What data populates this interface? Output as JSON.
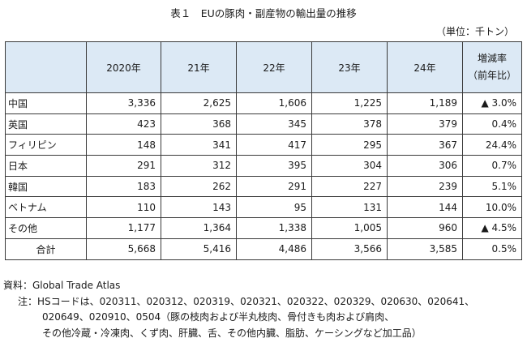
{
  "title": "表１　EUの豚肉・副産物の輸出量の推移",
  "unit": "（単位：千トン）",
  "table": {
    "headers": [
      "2020年",
      "21年",
      "22年",
      "23年",
      "24年"
    ],
    "rate_header_line1": "増減率",
    "rate_header_line2": "（前年比）",
    "rows": [
      {
        "label": "中国",
        "v1": "3,336",
        "v2": "2,625",
        "v3": "1,606",
        "v4": "1,225",
        "v5": "1,189",
        "rate": "▲ 3.0%"
      },
      {
        "label": "英国",
        "v1": "423",
        "v2": "368",
        "v3": "345",
        "v4": "378",
        "v5": "379",
        "rate": "0.4%"
      },
      {
        "label": "フィリピン",
        "v1": "148",
        "v2": "341",
        "v3": "417",
        "v4": "295",
        "v5": "367",
        "rate": "24.4%"
      },
      {
        "label": "日本",
        "v1": "291",
        "v2": "312",
        "v3": "395",
        "v4": "304",
        "v5": "306",
        "rate": "0.7%"
      },
      {
        "label": "韓国",
        "v1": "183",
        "v2": "262",
        "v3": "291",
        "v4": "227",
        "v5": "239",
        "rate": "5.1%"
      },
      {
        "label": "ベトナム",
        "v1": "110",
        "v2": "143",
        "v3": "95",
        "v4": "131",
        "v5": "144",
        "rate": "10.0%"
      },
      {
        "label": "その他",
        "v1": "1,177",
        "v2": "1,364",
        "v3": "1,338",
        "v4": "1,005",
        "v5": "960",
        "rate": "▲ 4.5%"
      }
    ],
    "total": {
      "label": "合計",
      "v1": "5,668",
      "v2": "5,416",
      "v3": "4,486",
      "v4": "3,566",
      "v5": "3,585",
      "rate": "0.5%"
    }
  },
  "notes": {
    "source": "資料：Global Trade Atlas",
    "note_line1": "注：HSコードは、020311、020312、020319、020321、020322、020329、020630、020641、",
    "note_line2": "020649、020910、0504（豚の枝肉および半丸枝肉、骨付きも肉および肩肉、",
    "note_line3": "その他冷蔵・冷凍肉、くず肉、肝臓、舌、その他内臓、脂肪、ケーシングなど加工品）"
  },
  "colors": {
    "header_bg": "#dce9f5",
    "border": "#3a3a3a"
  }
}
